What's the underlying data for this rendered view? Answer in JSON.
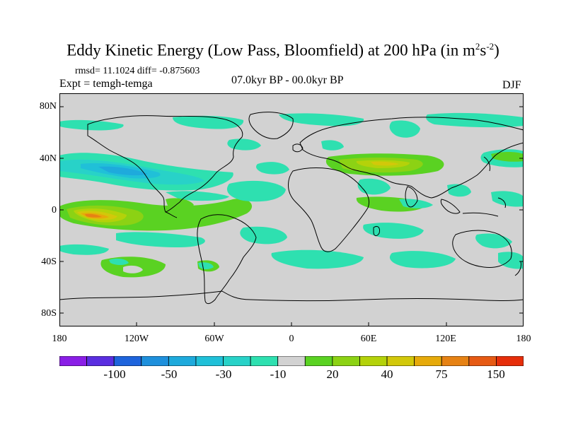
{
  "title": {
    "main": "Eddy Kinetic Energy (Low Pass, Bloomfield) at 200 hPa (in m",
    "sup1": "2",
    "mid": "s",
    "sup2": "-2",
    "end": ")"
  },
  "stats": "rmsd= 11.1024 diff= -0.875603",
  "expt": "Expt = temgh-temga",
  "period": "07.0kyr BP - 00.0kyr BP",
  "season": "DJF",
  "lat_labels": [
    "80N",
    "40N",
    "0",
    "40S",
    "80S"
  ],
  "lon_labels": [
    "180",
    "120W",
    "60W",
    "0",
    "60E",
    "120E",
    "180"
  ],
  "colorbar": {
    "labels": [
      "-100",
      "-50",
      "-30",
      "-10",
      "20",
      "40",
      "75",
      "150"
    ],
    "colors": [
      "#8a1ee6",
      "#5a2ee0",
      "#1e64dc",
      "#1e90dc",
      "#1eaadc",
      "#20c0d8",
      "#28d2c8",
      "#2ee0b0",
      "#d2d2d2",
      "#5ad222",
      "#8cd214",
      "#b4d20a",
      "#d2c80a",
      "#e6aa0a",
      "#e68214",
      "#e65a14",
      "#e62e0a"
    ]
  },
  "colors": {
    "land_bg": "#d2d2d2",
    "coast": "#000000"
  }
}
